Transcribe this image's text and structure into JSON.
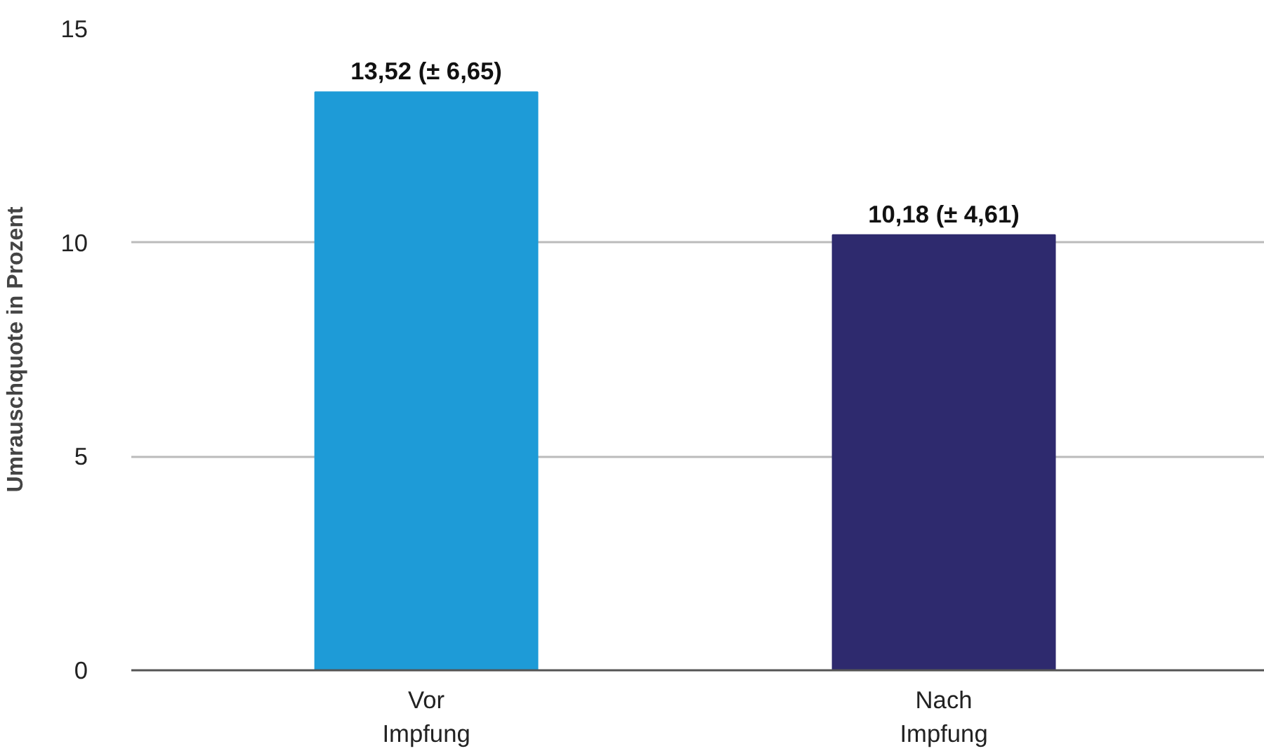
{
  "chart_data": {
    "type": "bar",
    "ylabel": "Umrauschquote in Prozent",
    "categories": [
      "Vor Impfung",
      "Nach Impfung"
    ],
    "values": [
      13.52,
      10.18
    ],
    "colors": [
      "#1e9bd7",
      "#2e2a6e"
    ],
    "value_labels": [
      "13,52 (± 6,65)",
      "10,18 (± 4,61)"
    ],
    "ylim": [
      0,
      15
    ],
    "yticks": [
      0,
      5,
      10,
      15
    ],
    "grid": "y"
  }
}
